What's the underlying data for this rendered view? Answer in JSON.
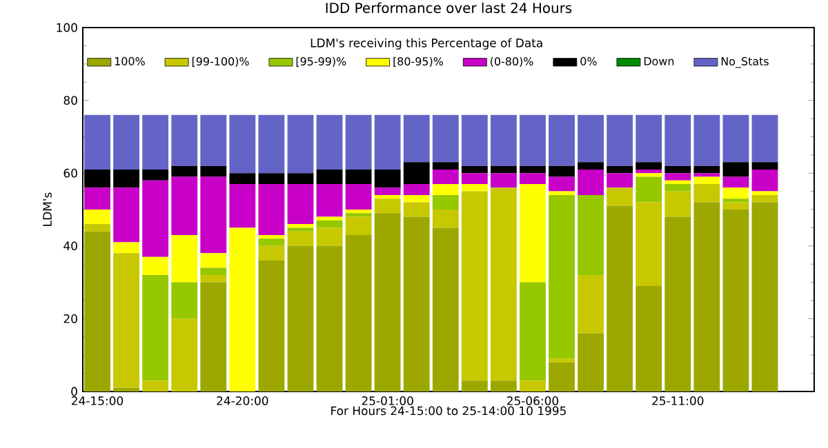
{
  "chart_data": {
    "type": "bar",
    "stacked": true,
    "title": "IDD Performance over last 24 Hours",
    "xlabel": "For Hours 24-15:00 to 25-14:00   10  1995",
    "ylabel": "LDM's",
    "legend_title": "LDM's receiving this Percentage of Data",
    "legend": "top",
    "categories": [
      "24-15:00",
      null,
      null,
      null,
      null,
      "24-20:00",
      null,
      null,
      null,
      null,
      "25-01:00",
      null,
      null,
      null,
      null,
      "25-06:00",
      null,
      null,
      null,
      null,
      "25-11:00",
      null,
      null,
      null
    ],
    "ylim": [
      0,
      100
    ],
    "yticks": [
      0,
      20,
      40,
      60,
      80,
      100
    ],
    "series": [
      {
        "name": "100%",
        "color": "#9ca800",
        "values": [
          44,
          1,
          0,
          0,
          30,
          0,
          36,
          40,
          40,
          43,
          49,
          48,
          45,
          3,
          3,
          0,
          8,
          16,
          51,
          29,
          48,
          52,
          50,
          52
        ]
      },
      {
        "name": "[99-100)%",
        "color": "#c8c800",
        "values": [
          2,
          37,
          3,
          20,
          2,
          0,
          4,
          4,
          5,
          5,
          4,
          4,
          5,
          52,
          53,
          3,
          1,
          16,
          5,
          23,
          7,
          5,
          2,
          2
        ]
      },
      {
        "name": "[95-99)%",
        "color": "#96c800",
        "values": [
          0,
          0,
          29,
          10,
          2,
          0,
          2,
          1,
          2,
          1,
          0,
          0,
          4,
          0,
          0,
          27,
          45,
          22,
          0,
          7,
          2,
          0,
          1,
          0
        ]
      },
      {
        "name": "[80-95)%",
        "color": "#ffff00",
        "values": [
          4,
          3,
          5,
          13,
          4,
          45,
          1,
          1,
          1,
          1,
          1,
          2,
          3,
          2,
          0,
          27,
          1,
          0,
          0,
          1,
          1,
          2,
          3,
          1
        ]
      },
      {
        "name": "(0-80)%",
        "color": "#c800c8",
        "values": [
          6,
          15,
          21,
          16,
          21,
          12,
          14,
          11,
          9,
          7,
          2,
          3,
          4,
          3,
          4,
          3,
          4,
          7,
          4,
          1,
          2,
          1,
          3,
          6
        ]
      },
      {
        "name": "0%",
        "color": "#000000",
        "values": [
          5,
          5,
          3,
          3,
          3,
          3,
          3,
          3,
          4,
          4,
          5,
          6,
          2,
          2,
          2,
          2,
          3,
          2,
          2,
          2,
          2,
          2,
          4,
          2
        ]
      },
      {
        "name": "Down",
        "color": "#008c00",
        "values": [
          0,
          0,
          0,
          0,
          0,
          0,
          0,
          0,
          0,
          0,
          0,
          0,
          0,
          0,
          0,
          0,
          0,
          0,
          0,
          0,
          0,
          0,
          0,
          0
        ]
      },
      {
        "name": "No_Stats",
        "color": "#6464c8",
        "values": [
          15,
          15,
          15,
          14,
          14,
          16,
          16,
          16,
          15,
          15,
          15,
          13,
          13,
          14,
          14,
          14,
          14,
          13,
          14,
          13,
          14,
          14,
          13,
          13
        ]
      }
    ]
  }
}
